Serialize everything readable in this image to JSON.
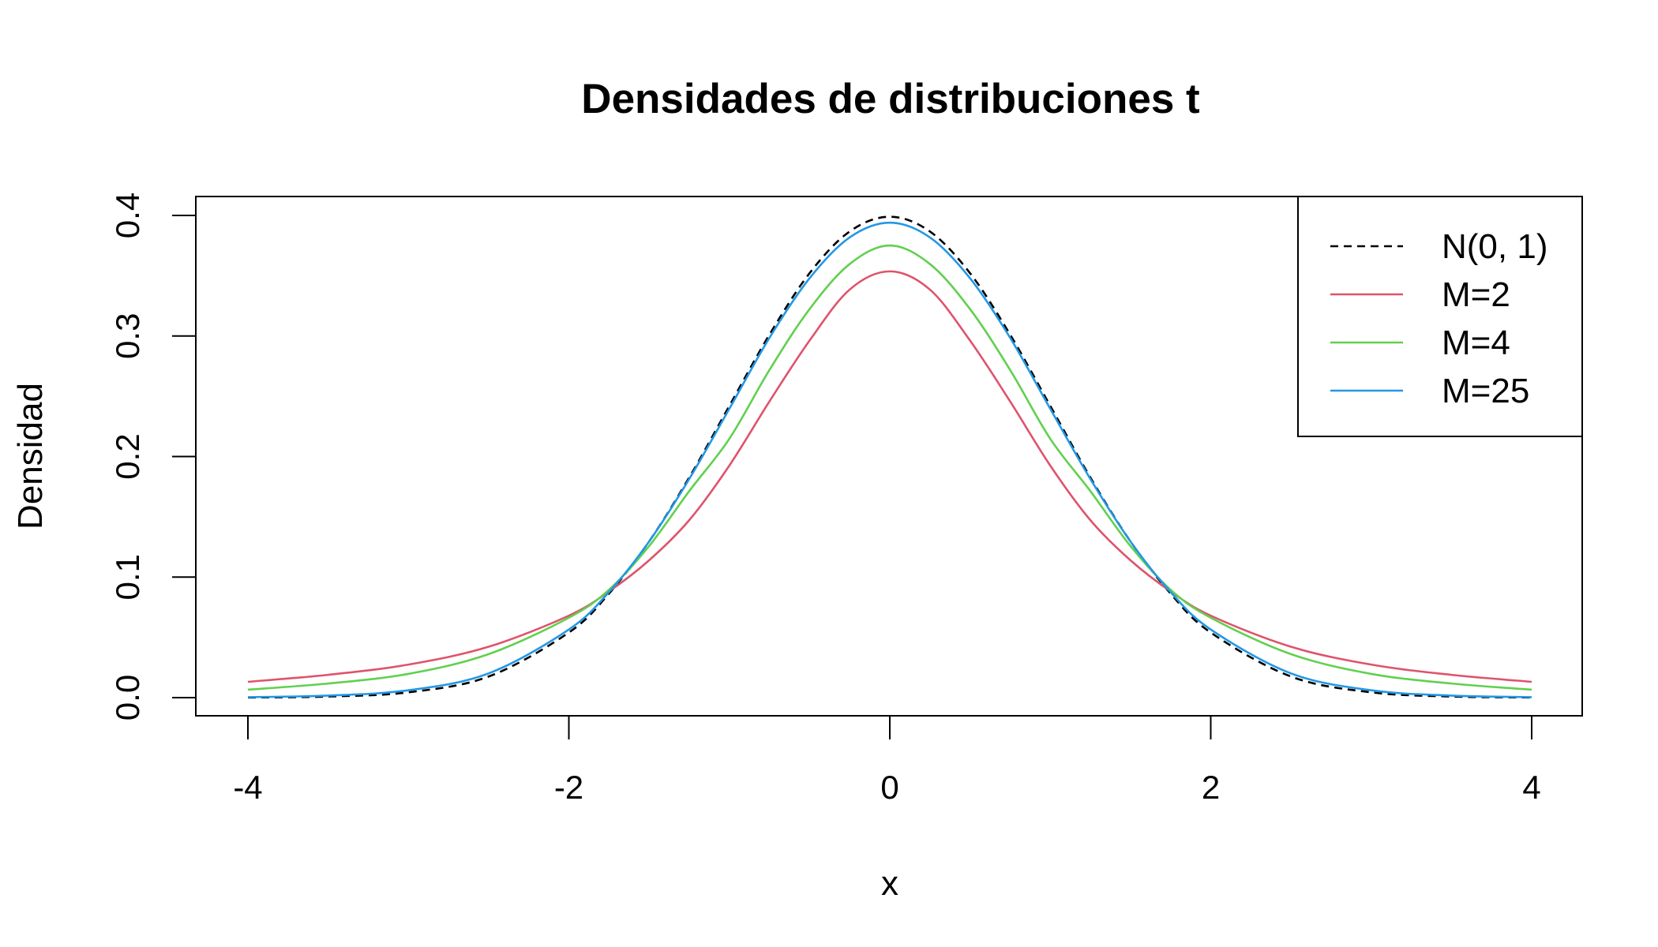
{
  "chart_data": {
    "type": "line",
    "title": "Densidades de distribuciones t",
    "xlabel": "x",
    "ylabel": "Densidad",
    "xlim": [
      -4,
      4
    ],
    "ylim": [
      0,
      0.4
    ],
    "x_ticks": [
      "-4",
      "-2",
      "0",
      "2",
      "4"
    ],
    "y_ticks": [
      "0.0",
      "0.1",
      "0.2",
      "0.3",
      "0.4"
    ],
    "grid": false,
    "legend_position": "top-right",
    "x": [
      -4,
      -3.5,
      -3,
      -2.5,
      -2,
      -1.75,
      -1.5,
      -1.25,
      -1,
      -0.75,
      -0.5,
      -0.25,
      0,
      0.25,
      0.5,
      0.75,
      1,
      1.25,
      1.5,
      1.75,
      2,
      2.5,
      3,
      3.5,
      4
    ],
    "series": [
      {
        "name": "N(0, 1)",
        "color": "#000000",
        "dashed": true,
        "values": [
          0.0001,
          0.0009,
          0.0044,
          0.0175,
          0.054,
          0.0863,
          0.1295,
          0.1826,
          0.242,
          0.3011,
          0.3521,
          0.3867,
          0.3989,
          0.3867,
          0.3521,
          0.3011,
          0.242,
          0.1826,
          0.1295,
          0.0863,
          0.054,
          0.0175,
          0.0044,
          0.0009,
          0.0001
        ]
      },
      {
        "name": "M=2",
        "color": "#DF536B",
        "dashed": false,
        "values": [
          0.0131,
          0.0189,
          0.0274,
          0.0422,
          0.068,
          0.0881,
          0.1139,
          0.1472,
          0.1925,
          0.2457,
          0.2962,
          0.3385,
          0.3536,
          0.3385,
          0.2962,
          0.2457,
          0.1925,
          0.1472,
          0.1139,
          0.0881,
          0.068,
          0.0422,
          0.0274,
          0.0189,
          0.0131
        ]
      },
      {
        "name": "M=4",
        "color": "#61D04F",
        "dashed": false,
        "values": [
          0.0066,
          0.0117,
          0.0197,
          0.0361,
          0.0663,
          0.0895,
          0.1257,
          0.1713,
          0.2147,
          0.2718,
          0.3223,
          0.3597,
          0.3751,
          0.3597,
          0.3223,
          0.2718,
          0.2147,
          0.1713,
          0.1257,
          0.0895,
          0.0663,
          0.0361,
          0.0197,
          0.0117,
          0.0066
        ]
      },
      {
        "name": "M=25",
        "color": "#2297E6",
        "dashed": false,
        "values": [
          0.0004,
          0.0017,
          0.0061,
          0.0201,
          0.0565,
          0.0876,
          0.1295,
          0.1814,
          0.2396,
          0.2985,
          0.3479,
          0.3818,
          0.394,
          0.3818,
          0.3479,
          0.2985,
          0.2396,
          0.1814,
          0.1295,
          0.0876,
          0.0565,
          0.0201,
          0.0061,
          0.0017,
          0.0004
        ]
      }
    ]
  }
}
